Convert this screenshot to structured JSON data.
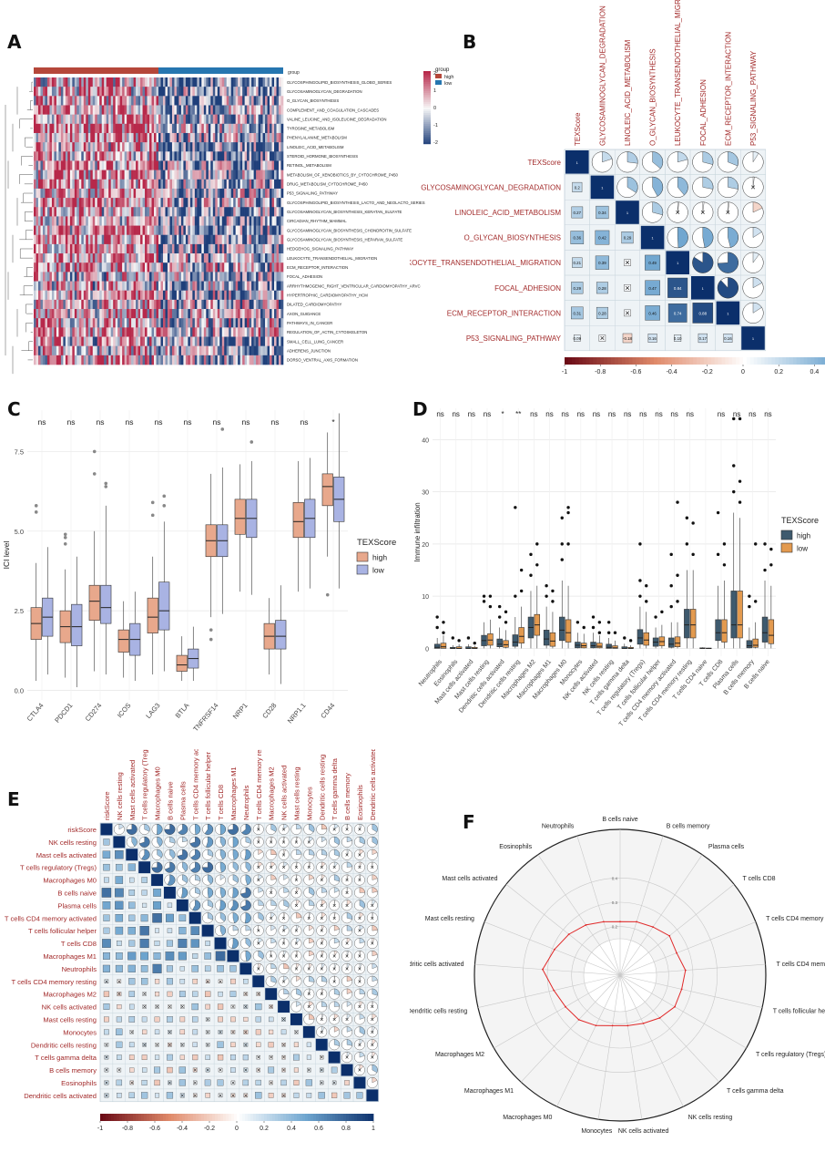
{
  "figure": {
    "panel_labels": [
      "A",
      "B",
      "C",
      "D",
      "E",
      "F"
    ]
  },
  "panel_a": {
    "legend_group_title": "group",
    "legend_groups": [
      "high",
      "low"
    ],
    "colorbar_ticks": [
      "2",
      "1",
      "0",
      "-1",
      "-2"
    ],
    "group_header_label": "group",
    "pathways": [
      "GLYCOSPHINGOLIPID_BIOSYNTHESIS_GLOBO_SERIES",
      "GLYCOSAMINOGLYCAN_DEGRADATION",
      "O_GLYCAN_BIOSYNTHESIS",
      "COMPLEMENT_AND_COAGULATION_CASCADES",
      "VALINE_LEUCINE_AND_ISOLEUCINE_DEGRADATION",
      "TYROSINE_METABOLISM",
      "PHENYLALANINE_METABOLISM",
      "LINOLEIC_ACID_METABOLISM",
      "STEROID_HORMONE_BIOSYNTHESIS",
      "RETINOL_METABOLISM",
      "METABOLISM_OF_XENOBIOTICS_BY_CYTOCHROME_P450",
      "DRUG_METABOLISM_CYTOCHROME_P450",
      "P53_SIGNALING_PATHWAY",
      "GLYCOSPHINGOLIPID_BIOSYNTHESIS_LACTO_AND_NEOLACTO_SERIES",
      "GLYCOSAMINOGLYCAN_BIOSYNTHESIS_KERATAN_SULFATE",
      "CIRCADIAN_RHYTHM_MAMMAL",
      "GLYCOSAMINOGLYCAN_BIOSYNTHESIS_CHONDROITIN_SULFATE",
      "GLYCOSAMINOGLYCAN_BIOSYNTHESIS_HEPARAN_SULFATE",
      "HEDGEHOG_SIGNALING_PATHWAY",
      "LEUKOCYTE_TRANSENDOTHELIAL_MIGRATION",
      "ECM_RECEPTOR_INTERACTION",
      "FOCAL_ADHESION",
      "ARRHYTHMOGENIC_RIGHT_VENTRICULAR_CARDIOMYOPATHY_ARVC",
      "HYPERTROPHIC_CARDIOMYOPATHY_HCM",
      "DILATED_CARDIOMYOPATHY",
      "AXON_GUIDANCE",
      "PATHWAYS_IN_CANCER",
      "REGULATION_OF_ACTIN_CYTOSKELETON",
      "SMALL_CELL_LUNG_CANCER",
      "ADHERENS_JUNCTION",
      "DORSO_VENTRAL_AXIS_FORMATION"
    ],
    "colors": {
      "high": "#b5473a",
      "low": "#2676b0",
      "pos": "#b7284a",
      "neg": "#1f3f7a"
    }
  },
  "panel_b": {
    "variables": [
      "TEXScore",
      "GLYCOSAMINOGLYCAN_DEGRADATION",
      "LINOLEIC_ACID_METABOLISM",
      "O_GLYCAN_BIOSYNTHESIS",
      "LEUKOCYTE_TRANSENDOTHELIAL_MIGRATION",
      "FOCAL_ADHESION",
      "ECM_RECEPTOR_INTERACTION",
      "P53_SIGNALING_PATHWAY"
    ],
    "lower_values": [
      [
        "0.2"
      ],
      [
        "0.27",
        "0.34"
      ],
      [
        "0.36",
        "0.42",
        "0.29"
      ],
      [
        "0.21",
        "0.39",
        "",
        "0.49"
      ],
      [
        "0.29",
        "0.28",
        "",
        "0.47",
        "0.84"
      ],
      [
        "0.31",
        "0.28",
        "",
        "0.46",
        "0.74",
        "0.88"
      ],
      [
        "0.09",
        "",
        "-0.18",
        "0.16",
        "0.10",
        "0.17",
        "0.16"
      ]
    ],
    "colorbar_ticks": [
      "-1",
      "-0.8",
      "-0.6",
      "-0.4",
      "-0.2",
      "0",
      "0.2",
      "0.4",
      "0.6",
      "0.8",
      "1"
    ]
  },
  "panel_c": {
    "ylabel": "ICI level",
    "legend_title": "TEXScore",
    "legend_items": [
      "high",
      "low"
    ],
    "yticks": [
      "0.0",
      "2.5",
      "5.0",
      "7.5"
    ],
    "colors": {
      "high": "#e8a88c",
      "low": "#a9b3e3"
    },
    "chart_data": {
      "type": "box",
      "title": "",
      "xlabel": "",
      "ylabel": "ICI level",
      "ylim": [
        -0.3,
        8.8
      ],
      "categories": [
        "CTLA4",
        "PDCD1",
        "CD274",
        "ICOS",
        "LAG3",
        "BTLA",
        "TNFRSF14",
        "NRP1",
        "CD28",
        "NRP1.1",
        "CD44"
      ],
      "significance": [
        "ns",
        "ns",
        "ns",
        "ns",
        "ns",
        "ns",
        "ns",
        "ns",
        "ns",
        "ns",
        "*"
      ],
      "series": [
        {
          "name": "high",
          "box": [
            [
              0.3,
              1.6,
              2.1,
              2.6,
              4.0
            ],
            [
              0.4,
              1.5,
              2.0,
              2.5,
              3.8
            ],
            [
              0.6,
              2.2,
              2.8,
              3.3,
              5.0
            ],
            [
              0.4,
              1.2,
              1.6,
              1.9,
              2.8
            ],
            [
              0.5,
              1.8,
              2.3,
              2.9,
              4.2
            ],
            [
              0.3,
              0.6,
              0.8,
              1.1,
              1.7
            ],
            [
              2.3,
              4.2,
              4.7,
              5.2,
              6.8
            ],
            [
              3.1,
              4.9,
              5.4,
              6.0,
              7.1
            ],
            [
              0.5,
              1.3,
              1.7,
              2.1,
              2.9
            ],
            [
              3.1,
              4.8,
              5.3,
              5.9,
              7.2
            ],
            [
              4.2,
              5.8,
              6.4,
              6.8,
              8.1
            ]
          ],
          "outliers": [
            [
              5.8,
              5.6
            ],
            [
              4.6,
              4.8,
              4.9
            ],
            [
              6.8,
              7.5
            ],
            [],
            [
              5.5,
              5.9
            ],
            [],
            [
              1.6,
              1.9
            ],
            [],
            [],
            [],
            [
              3.0
            ]
          ]
        },
        {
          "name": "low",
          "box": [
            [
              0.5,
              1.7,
              2.3,
              2.9,
              4.5
            ],
            [
              0.1,
              1.4,
              2.0,
              2.7,
              4.2
            ],
            [
              0.5,
              2.1,
              2.6,
              3.3,
              5.8
            ],
            [
              0.3,
              1.1,
              1.6,
              2.1,
              3.1
            ],
            [
              0.6,
              1.9,
              2.5,
              3.4,
              5.3
            ],
            [
              0.3,
              0.7,
              1.0,
              1.3,
              2.0
            ],
            [
              2.4,
              4.2,
              4.7,
              5.2,
              7.0
            ],
            [
              3.0,
              4.8,
              5.4,
              6.0,
              7.2
            ],
            [
              0.2,
              1.3,
              1.7,
              2.2,
              3.3
            ],
            [
              3.2,
              4.8,
              5.4,
              6.0,
              7.3
            ],
            [
              3.2,
              5.3,
              6.0,
              6.7,
              8.7
            ]
          ],
          "outliers": [
            [],
            [],
            [
              6.4,
              6.5
            ],
            [],
            [
              5.8,
              6.1
            ],
            [],
            [
              8.2
            ],
            [
              7.8
            ],
            [],
            [],
            []
          ]
        }
      ]
    }
  },
  "panel_d": {
    "ylabel": "Immune infiltration",
    "legend_title": "TEXScore",
    "legend_items": [
      "high",
      "low"
    ],
    "yticks": [
      "0",
      "10",
      "20",
      "30",
      "40"
    ],
    "colors": {
      "high": "#3e5a6e",
      "low": "#e39a4f"
    },
    "chart_data": {
      "type": "box",
      "title": "",
      "xlabel": "",
      "ylabel": "Immune infiltration",
      "ylim": [
        -1.5,
        46
      ],
      "categories": [
        "Neutrophils",
        "Eosinophils",
        "Mast cells activated",
        "Mast cells resting",
        "Dendritic cells activated",
        "Dendritic cells resting",
        "Macrophages M2",
        "Macrophages M1",
        "Macrophages M0",
        "Monocytes",
        "NK cells activated",
        "NK cells resting",
        "T cells gamma delta",
        "T cells regulatory (Tregs)",
        "T cells follicular helper",
        "T cells CD4 memory activated",
        "T cells CD4 memory resting",
        "T cells CD4 naive",
        "T cells CD8",
        "Plasma cells",
        "B cells memory",
        "B cells naive"
      ],
      "significance": [
        "ns",
        "ns",
        "ns",
        "ns",
        "*",
        "**",
        "ns",
        "ns",
        "ns",
        "ns",
        "ns",
        "ns",
        "ns",
        "ns",
        "ns",
        "ns",
        "ns",
        "",
        "ns",
        "ns",
        "ns",
        "ns"
      ],
      "series": [
        {
          "name": "high",
          "box": [
            [
              0,
              0,
              0.2,
              0.8,
              2
            ],
            [
              0,
              0,
              0,
              0.2,
              0.6
            ],
            [
              0,
              0,
              0,
              0.3,
              0.8
            ],
            [
              0,
              0.5,
              1.5,
              2.5,
              5
            ],
            [
              0,
              0.3,
              0.8,
              1.8,
              4
            ],
            [
              0,
              0.4,
              1.2,
              2.6,
              6
            ],
            [
              0,
              2,
              4,
              6,
              11
            ],
            [
              0,
              0.6,
              1.8,
              3.5,
              8
            ],
            [
              0,
              1.5,
              3.5,
              6,
              13
            ],
            [
              0,
              0.1,
              0.6,
              1.2,
              3
            ],
            [
              0,
              0.1,
              0.5,
              1.2,
              3
            ],
            [
              0,
              0,
              0.2,
              0.8,
              2
            ],
            [
              0,
              0,
              0,
              0.3,
              0.9
            ],
            [
              0,
              0.8,
              2,
              3.6,
              8
            ],
            [
              0,
              0.4,
              1.2,
              2,
              4
            ],
            [
              0,
              0.2,
              0.8,
              2,
              5
            ],
            [
              0,
              2,
              4.5,
              7.5,
              15
            ],
            [
              0,
              0,
              0,
              0.1,
              0.2
            ],
            [
              0,
              1.5,
              3,
              5.5,
              12
            ],
            [
              0,
              2,
              4.5,
              11,
              26
            ],
            [
              0,
              0.1,
              0.5,
              1.5,
              4
            ],
            [
              0,
              1.2,
              3,
              6,
              13
            ]
          ],
          "outliers": [
            [
              4,
              6
            ],
            [
              2
            ],
            [
              2
            ],
            [
              9,
              10
            ],
            [
              6,
              8
            ],
            [
              10,
              27
            ],
            [
              14,
              18
            ],
            [
              10,
              12
            ],
            [
              17,
              20,
              25
            ],
            [
              5
            ],
            [
              4,
              6
            ],
            [
              3,
              5
            ],
            [
              2
            ],
            [
              10,
              13,
              20
            ],
            [
              6
            ],
            [
              8,
              12,
              18
            ],
            [
              20,
              25
            ],
            [],
            [
              18,
              26
            ],
            [
              30,
              35,
              44
            ],
            [
              8,
              10
            ],
            [
              15,
              20
            ]
          ]
        },
        {
          "name": "low",
          "box": [
            [
              0,
              0,
              0.3,
              1,
              2.5
            ],
            [
              0,
              0,
              0,
              0.3,
              0.8
            ],
            [
              0,
              0,
              0,
              0.2,
              0.5
            ],
            [
              0,
              0.6,
              1.6,
              2.8,
              5.5
            ],
            [
              0,
              0.2,
              0.7,
              1.5,
              3.5
            ],
            [
              0,
              1,
              2.3,
              4,
              8
            ],
            [
              0,
              2.5,
              4.5,
              6.5,
              12
            ],
            [
              0,
              0.4,
              1.4,
              3,
              7
            ],
            [
              0,
              1.2,
              3,
              5.5,
              12
            ],
            [
              0,
              0.1,
              0.5,
              1,
              2.8
            ],
            [
              0,
              0.1,
              0.4,
              1,
              2.5
            ],
            [
              0,
              0,
              0.1,
              0.5,
              1.5
            ],
            [
              0,
              0,
              0,
              0.2,
              0.6
            ],
            [
              0,
              0.6,
              1.6,
              3,
              7
            ],
            [
              0,
              0.5,
              1.3,
              2.2,
              4.5
            ],
            [
              0,
              0.3,
              1,
              2.2,
              5
            ],
            [
              0,
              2,
              4.5,
              7.5,
              15
            ],
            [
              0,
              0,
              0,
              0.05,
              0.1
            ],
            [
              0,
              1.2,
              3,
              5.5,
              13
            ],
            [
              0,
              2,
              4.5,
              11,
              25
            ],
            [
              0,
              0.2,
              0.6,
              1.8,
              5
            ],
            [
              0,
              0.9,
              2.5,
              5.5,
              12
            ]
          ],
          "outliers": [
            [
              3,
              5
            ],
            [
              1.5
            ],
            [
              1
            ],
            [
              8,
              10
            ],
            [
              5,
              7
            ],
            [
              11,
              15
            ],
            [
              16,
              20
            ],
            [
              9,
              11
            ],
            [
              20,
              26,
              27
            ],
            [
              4
            ],
            [
              3,
              5
            ],
            [
              3
            ],
            [
              1.5
            ],
            [
              9,
              12
            ],
            [
              7
            ],
            [
              9,
              14,
              28
            ],
            [
              18,
              24
            ],
            [],
            [
              16,
              20
            ],
            [
              28,
              32,
              44
            ],
            [
              9,
              20
            ],
            [
              16,
              19
            ]
          ]
        }
      ]
    }
  },
  "panel_e": {
    "cells": [
      "riskScore",
      "NK cells resting",
      "Mast cells activated",
      "T cells regulatory (Tregs)",
      "Macrophages M0",
      "B cells naive",
      "Plasma cells",
      "T cells CD4 memory activated",
      "T cells follicular helper",
      "T cells CD8",
      "Macrophages M1",
      "Neutrophils",
      "T cells CD4 memory resting",
      "Macrophages M2",
      "NK cells activated",
      "Mast cells resting",
      "Monocytes",
      "Dendritic cells resting",
      "T cells gamma delta",
      "B cells memory",
      "Eosinophils",
      "Dendritic cells activated"
    ],
    "colorbar_ticks": [
      "-1",
      "-0.8",
      "-0.6",
      "-0.4",
      "-0.2",
      "0",
      "0.2",
      "0.4",
      "0.6",
      "0.8",
      "1"
    ]
  },
  "panel_f": {
    "chart_data": {
      "type": "radar",
      "title": "",
      "axes": [
        "B cells naive",
        "B cells memory",
        "Plasma cells",
        "T cells CD8",
        "T cells CD4 memory resting",
        "T cells CD4 memory activated",
        "T cells follicular helper",
        "T cells regulatory (Tregs)",
        "T cells gamma delta",
        "NK cells resting",
        "NK cells activated",
        "Monocytes",
        "Macrophages M0",
        "Macrophages M1",
        "Macrophages M2",
        "Dendritic cells resting",
        "Dendritic cells activated",
        "Mast cells resting",
        "Mast cells activated",
        "Eosinophils",
        "Neutrophils"
      ],
      "values": [
        0.22,
        0.23,
        0.24,
        0.26,
        0.25,
        0.27,
        0.26,
        0.26,
        0.24,
        0.22,
        0.21,
        0.21,
        0.23,
        0.25,
        0.26,
        0.28,
        0.32,
        0.29,
        0.27,
        0.25,
        0.23
      ],
      "rings": [
        0.1,
        0.2,
        0.3,
        0.4
      ],
      "ring_labels": [
        "0.2",
        "0.3",
        "0.4"
      ],
      "rlim": [
        0,
        0.6
      ]
    },
    "colors": {
      "line": "#e02a2a"
    }
  }
}
